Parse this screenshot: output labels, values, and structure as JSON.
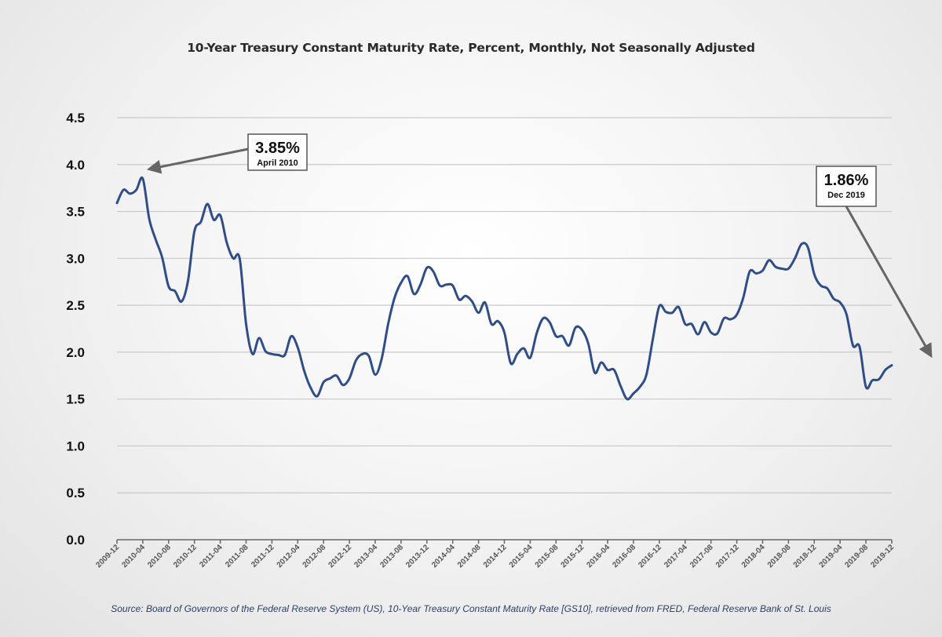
{
  "chart_data": {
    "type": "line",
    "title": "10-Year Treasury Constant Maturity Rate, Percent, Monthly, Not Seasonally Adjusted",
    "xlabel": "",
    "ylabel": "",
    "ylim": [
      0,
      4.5
    ],
    "yticks": [
      "0.0",
      "0.5",
      "1.0",
      "1.5",
      "2.0",
      "2.5",
      "3.0",
      "3.5",
      "4.0",
      "4.5"
    ],
    "ytick_values": [
      0,
      0.5,
      1.0,
      1.5,
      2.0,
      2.5,
      3.0,
      3.5,
      4.0,
      4.5
    ],
    "grid": true,
    "legend": "none",
    "x": [
      "2009-12",
      "2010-01",
      "2010-02",
      "2010-03",
      "2010-04",
      "2010-05",
      "2010-06",
      "2010-07",
      "2010-08",
      "2010-09",
      "2010-10",
      "2010-11",
      "2010-12",
      "2011-01",
      "2011-02",
      "2011-03",
      "2011-04",
      "2011-05",
      "2011-06",
      "2011-07",
      "2011-08",
      "2011-09",
      "2011-10",
      "2011-11",
      "2011-12",
      "2012-01",
      "2012-02",
      "2012-03",
      "2012-04",
      "2012-05",
      "2012-06",
      "2012-07",
      "2012-08",
      "2012-09",
      "2012-10",
      "2012-11",
      "2012-12",
      "2013-01",
      "2013-02",
      "2013-03",
      "2013-04",
      "2013-05",
      "2013-06",
      "2013-07",
      "2013-08",
      "2013-09",
      "2013-10",
      "2013-11",
      "2013-12",
      "2014-01",
      "2014-02",
      "2014-03",
      "2014-04",
      "2014-05",
      "2014-06",
      "2014-07",
      "2014-08",
      "2014-09",
      "2014-10",
      "2014-11",
      "2014-12",
      "2015-01",
      "2015-02",
      "2015-03",
      "2015-04",
      "2015-05",
      "2015-06",
      "2015-07",
      "2015-08",
      "2015-09",
      "2015-10",
      "2015-11",
      "2015-12",
      "2016-01",
      "2016-02",
      "2016-03",
      "2016-04",
      "2016-05",
      "2016-06",
      "2016-07",
      "2016-08",
      "2016-09",
      "2016-10",
      "2016-11",
      "2016-12",
      "2017-01",
      "2017-02",
      "2017-03",
      "2017-04",
      "2017-05",
      "2017-06",
      "2017-07",
      "2017-08",
      "2017-09",
      "2017-10",
      "2017-11",
      "2017-12",
      "2018-01",
      "2018-02",
      "2018-03",
      "2018-04",
      "2018-05",
      "2018-06",
      "2018-07",
      "2018-08",
      "2018-09",
      "2018-10",
      "2018-11",
      "2018-12",
      "2019-01",
      "2019-02",
      "2019-03",
      "2019-04",
      "2019-05",
      "2019-06",
      "2019-07",
      "2019-08",
      "2019-09",
      "2019-10",
      "2019-11",
      "2019-12"
    ],
    "series": [
      {
        "name": "GS10",
        "color": "#2f4d86",
        "values": [
          3.59,
          3.73,
          3.69,
          3.73,
          3.85,
          3.42,
          3.2,
          3.01,
          2.7,
          2.65,
          2.54,
          2.76,
          3.29,
          3.39,
          3.58,
          3.41,
          3.46,
          3.17,
          3.0,
          3.0,
          2.3,
          1.98,
          2.15,
          2.01,
          1.98,
          1.97,
          1.97,
          2.17,
          2.05,
          1.8,
          1.62,
          1.53,
          1.68,
          1.72,
          1.75,
          1.65,
          1.72,
          1.91,
          1.98,
          1.96,
          1.76,
          1.93,
          2.3,
          2.58,
          2.74,
          2.81,
          2.62,
          2.72,
          2.9,
          2.86,
          2.71,
          2.72,
          2.71,
          2.56,
          2.6,
          2.54,
          2.42,
          2.53,
          2.3,
          2.33,
          2.21,
          1.88,
          1.98,
          2.04,
          1.94,
          2.2,
          2.36,
          2.32,
          2.17,
          2.17,
          2.07,
          2.26,
          2.24,
          2.09,
          1.78,
          1.89,
          1.81,
          1.81,
          1.64,
          1.5,
          1.56,
          1.63,
          1.76,
          2.14,
          2.49,
          2.43,
          2.42,
          2.48,
          2.3,
          2.3,
          2.19,
          2.32,
          2.21,
          2.2,
          2.36,
          2.35,
          2.4,
          2.58,
          2.86,
          2.84,
          2.87,
          2.98,
          2.91,
          2.89,
          2.89,
          3.0,
          3.15,
          3.12,
          2.83,
          2.71,
          2.68,
          2.57,
          2.53,
          2.4,
          2.07,
          2.06,
          1.63,
          1.7,
          1.71,
          1.81,
          1.86
        ]
      }
    ],
    "xticks": [
      "2009-12",
      "2010-04",
      "2010-08",
      "2010-12",
      "2011-04",
      "2011-08",
      "2011-12",
      "2012-04",
      "2012-08",
      "2012-12",
      "2013-04",
      "2013-08",
      "2013-12",
      "2014-04",
      "2014-08",
      "2014-12",
      "2015-04",
      "2015-08",
      "2015-12",
      "2016-04",
      "2016-08",
      "2016-12",
      "2017-04",
      "2017-08",
      "2017-12",
      "2018-04",
      "2018-08",
      "2018-12",
      "2019-04",
      "2019-08",
      "2019-12"
    ],
    "annotations": [
      {
        "value_label": "3.85%",
        "date_label": "April 2010",
        "target_x": "2010-04",
        "target_y": 3.85
      },
      {
        "value_label": "1.86%",
        "date_label": "Dec 2019",
        "target_x": "2019-12",
        "target_y": 1.86
      }
    ],
    "source": "Source: Board of Governors of the Federal Reserve System (US), 10-Year Treasury Constant Maturity Rate [GS10], retrieved from FRED, Federal Reserve Bank of St. Louis"
  }
}
